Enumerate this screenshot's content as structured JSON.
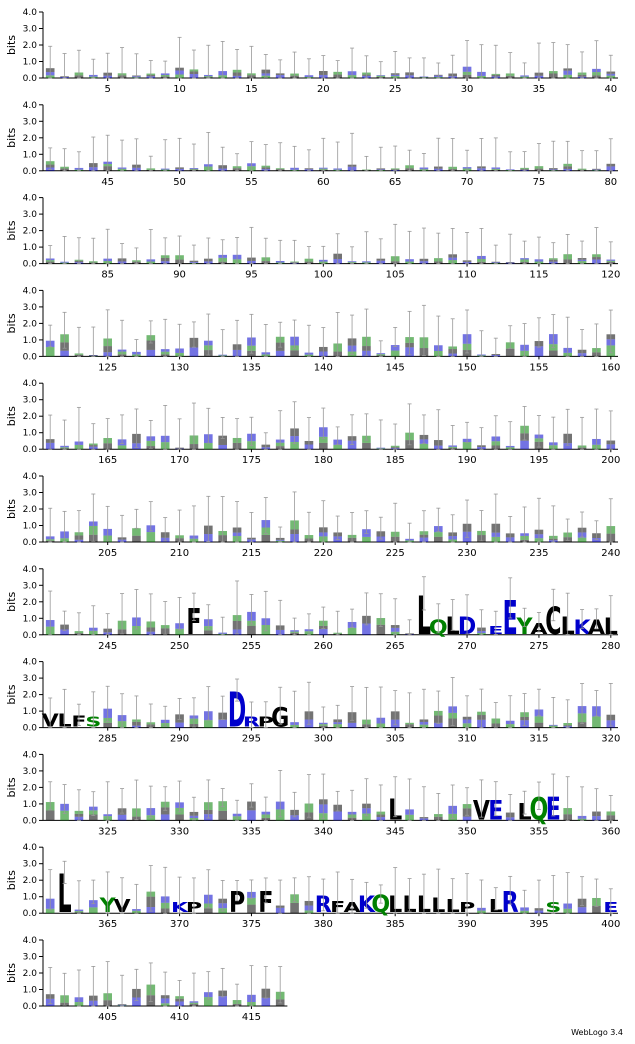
{
  "chart_data": {
    "type": "sequence-logo",
    "ylabel": "bits",
    "ylim": [
      0,
      4.0
    ],
    "yticks": [
      "0.0",
      "1.0",
      "2.0",
      "3.0",
      "4.0"
    ],
    "positions_total": 417,
    "positions_per_row": 40,
    "rows": [
      {
        "start": 1,
        "end": 40,
        "ticks": [
          5,
          10,
          15,
          20,
          25,
          30,
          35,
          40
        ]
      },
      {
        "start": 41,
        "end": 80,
        "ticks": [
          45,
          50,
          55,
          60,
          65,
          70,
          75,
          80
        ]
      },
      {
        "start": 81,
        "end": 120,
        "ticks": [
          85,
          90,
          95,
          100,
          105,
          110,
          115,
          120
        ]
      },
      {
        "start": 121,
        "end": 160,
        "ticks": [
          125,
          130,
          135,
          140,
          145,
          150,
          155,
          160
        ]
      },
      {
        "start": 161,
        "end": 200,
        "ticks": [
          165,
          170,
          175,
          180,
          185,
          190,
          195,
          200
        ]
      },
      {
        "start": 201,
        "end": 240,
        "ticks": [
          205,
          210,
          215,
          220,
          225,
          230,
          235,
          240
        ]
      },
      {
        "start": 241,
        "end": 280,
        "ticks": [
          245,
          250,
          255,
          260,
          265,
          270,
          275,
          280
        ]
      },
      {
        "start": 281,
        "end": 320,
        "ticks": [
          285,
          290,
          295,
          300,
          305,
          310,
          315,
          320
        ]
      },
      {
        "start": 321,
        "end": 360,
        "ticks": [
          325,
          330,
          335,
          340,
          345,
          350,
          355,
          360
        ]
      },
      {
        "start": 361,
        "end": 400,
        "ticks": [
          365,
          370,
          375,
          380,
          385,
          390,
          395,
          400
        ]
      },
      {
        "start": 401,
        "end": 417,
        "ticks": [
          405,
          410,
          415
        ]
      }
    ],
    "colors": {
      "hydrophobic": "#000000",
      "polar": "#008000",
      "charged": "#0000cc",
      "errorbar": "#999999"
    },
    "prominent_letters": [
      {
        "pos": 251,
        "letter": "F",
        "height": 1.6
      },
      {
        "pos": 267,
        "letter": "L",
        "height": 2.4
      },
      {
        "pos": 268,
        "letter": "Q",
        "height": 0.9
      },
      {
        "pos": 269,
        "letter": "L",
        "height": 1.1
      },
      {
        "pos": 270,
        "letter": "D",
        "height": 1.1
      },
      {
        "pos": 272,
        "letter": "E",
        "height": 0.5
      },
      {
        "pos": 273,
        "letter": "E",
        "height": 2.1
      },
      {
        "pos": 274,
        "letter": "Y",
        "height": 1.0
      },
      {
        "pos": 275,
        "letter": "A",
        "height": 0.7
      },
      {
        "pos": 276,
        "letter": "C",
        "height": 1.7
      },
      {
        "pos": 277,
        "letter": "L",
        "height": 1.1
      },
      {
        "pos": 278,
        "letter": "K",
        "height": 0.9
      },
      {
        "pos": 279,
        "letter": "A",
        "height": 0.9
      },
      {
        "pos": 280,
        "letter": "L",
        "height": 1.0
      },
      {
        "pos": 281,
        "letter": "V",
        "height": 0.8
      },
      {
        "pos": 282,
        "letter": "L",
        "height": 0.8
      },
      {
        "pos": 283,
        "letter": "F",
        "height": 0.7
      },
      {
        "pos": 284,
        "letter": "S",
        "height": 0.6
      },
      {
        "pos": 294,
        "letter": "D",
        "height": 2.2
      },
      {
        "pos": 295,
        "letter": "R",
        "height": 0.6
      },
      {
        "pos": 296,
        "letter": "P",
        "height": 0.6
      },
      {
        "pos": 297,
        "letter": "G",
        "height": 1.2
      },
      {
        "pos": 345,
        "letter": "L",
        "height": 1.3
      },
      {
        "pos": 351,
        "letter": "V",
        "height": 1.2
      },
      {
        "pos": 352,
        "letter": "E",
        "height": 1.2
      },
      {
        "pos": 354,
        "letter": "L",
        "height": 1.0
      },
      {
        "pos": 355,
        "letter": "Q",
        "height": 1.4
      },
      {
        "pos": 356,
        "letter": "E",
        "height": 1.4
      },
      {
        "pos": 362,
        "letter": "L",
        "height": 2.4
      },
      {
        "pos": 365,
        "letter": "Y",
        "height": 0.9
      },
      {
        "pos": 366,
        "letter": "V",
        "height": 0.8
      },
      {
        "pos": 370,
        "letter": "K",
        "height": 0.6
      },
      {
        "pos": 371,
        "letter": "P",
        "height": 0.6
      },
      {
        "pos": 374,
        "letter": "P",
        "height": 1.3
      },
      {
        "pos": 376,
        "letter": "F",
        "height": 1.3
      },
      {
        "pos": 380,
        "letter": "R",
        "height": 1.0
      },
      {
        "pos": 381,
        "letter": "F",
        "height": 0.7
      },
      {
        "pos": 382,
        "letter": "A",
        "height": 0.6
      },
      {
        "pos": 383,
        "letter": "K",
        "height": 1.0
      },
      {
        "pos": 384,
        "letter": "Q",
        "height": 1.1
      },
      {
        "pos": 385,
        "letter": "L",
        "height": 1.0
      },
      {
        "pos": 386,
        "letter": "L",
        "height": 1.0
      },
      {
        "pos": 387,
        "letter": "L",
        "height": 1.0
      },
      {
        "pos": 388,
        "letter": "L",
        "height": 0.9
      },
      {
        "pos": 389,
        "letter": "L",
        "height": 0.8
      },
      {
        "pos": 390,
        "letter": "P",
        "height": 0.6
      },
      {
        "pos": 392,
        "letter": "L",
        "height": 0.8
      },
      {
        "pos": 393,
        "letter": "R",
        "height": 1.3
      },
      {
        "pos": 396,
        "letter": "S",
        "height": 0.6
      },
      {
        "pos": 400,
        "letter": "E",
        "height": 0.6
      }
    ]
  },
  "footer": {
    "credit": "WebLogo 3.4"
  }
}
